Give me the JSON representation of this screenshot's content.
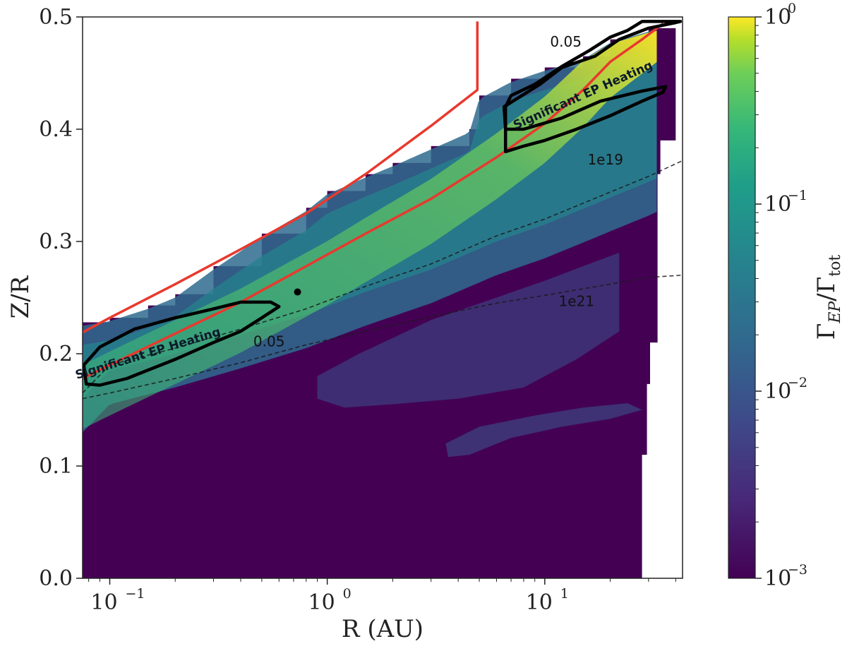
{
  "chart_data": {
    "type": "heatmap",
    "title": "",
    "xlabel": "R (AU)",
    "ylabel": "Z/R",
    "x_scale": "log",
    "xlim": [
      0.075,
      43
    ],
    "ylim": [
      0.0,
      0.5
    ],
    "x_ticks": [
      {
        "value": 0.1,
        "label": "10",
        "exp": "−1"
      },
      {
        "value": 1,
        "label": "10",
        "exp": "0"
      },
      {
        "value": 10,
        "label": "10",
        "exp": "1"
      }
    ],
    "y_ticks": [
      {
        "value": 0.0,
        "label": "0.0"
      },
      {
        "value": 0.1,
        "label": "0.1"
      },
      {
        "value": 0.2,
        "label": "0.2"
      },
      {
        "value": 0.3,
        "label": "0.3"
      },
      {
        "value": 0.4,
        "label": "0.4"
      },
      {
        "value": 0.5,
        "label": "0.5"
      }
    ],
    "colorbar": {
      "label": "Γ_EP/Γ_tot",
      "colormap": "viridis",
      "scale": "log",
      "range": [
        0.001,
        1
      ],
      "ticks": [
        {
          "value": 1,
          "label": "10",
          "exp": "0"
        },
        {
          "value": 0.1,
          "label": "10",
          "exp": "−1"
        },
        {
          "value": 0.01,
          "label": "10",
          "exp": "−2"
        },
        {
          "value": 0.001,
          "label": "10",
          "exp": "−3"
        }
      ]
    },
    "upper_boundary": [
      [
        0.075,
        0.228
      ],
      [
        0.1,
        0.232
      ],
      [
        0.15,
        0.243
      ],
      [
        0.2,
        0.253
      ],
      [
        0.3,
        0.278
      ],
      [
        0.5,
        0.307
      ],
      [
        0.8,
        0.33
      ],
      [
        1.0,
        0.345
      ],
      [
        1.5,
        0.36
      ],
      [
        2.0,
        0.37
      ],
      [
        3.0,
        0.385
      ],
      [
        4.5,
        0.4
      ],
      [
        5.0,
        0.43
      ],
      [
        7.0,
        0.445
      ],
      [
        10.0,
        0.455
      ],
      [
        15.0,
        0.465
      ],
      [
        20.0,
        0.48
      ],
      [
        30.0,
        0.49
      ],
      [
        40.0,
        0.495
      ]
    ],
    "right_boundary": [
      [
        40.0,
        0.495
      ],
      [
        40.0,
        0.39
      ],
      [
        34.0,
        0.39
      ],
      [
        34.0,
        0.36
      ],
      [
        33.0,
        0.36
      ],
      [
        33.0,
        0.21
      ],
      [
        30.5,
        0.21
      ],
      [
        30.5,
        0.173
      ],
      [
        29.5,
        0.173
      ],
      [
        29.5,
        0.11
      ],
      [
        28.0,
        0.11
      ],
      [
        28.0,
        0.0
      ]
    ],
    "features": [
      {
        "name": "green ridge along red curve",
        "x": [
          0.3,
          0.7,
          1.5,
          3,
          6,
          12,
          25,
          40
        ],
        "z": [
          0.255,
          0.275,
          0.3,
          0.33,
          0.37,
          0.41,
          0.46,
          0.49
        ],
        "level": 0.1
      },
      {
        "name": "teal upper band",
        "level": 0.02
      },
      {
        "name": "faint mid-disk feature",
        "x_range": [
          0.9,
          22
        ],
        "z_range": [
          0.15,
          0.29
        ],
        "level": 0.005
      },
      {
        "name": "faint lower feature",
        "x_range": [
          3.5,
          28
        ],
        "z_range": [
          0.11,
          0.16
        ],
        "level": 0.004
      }
    ],
    "red_curves": [
      {
        "x": [
          0.075,
          0.1,
          0.2,
          0.4,
          0.8,
          1.5,
          3,
          4.9,
          4.9
        ],
        "y": [
          0.219,
          0.232,
          0.262,
          0.293,
          0.325,
          0.36,
          0.403,
          0.435,
          0.496
        ]
      },
      {
        "x": [
          0.075,
          0.1,
          0.2,
          0.4,
          0.8,
          1.5,
          3,
          6,
          10,
          15,
          20,
          28,
          35
        ],
        "y": [
          0.178,
          0.19,
          0.218,
          0.246,
          0.278,
          0.307,
          0.338,
          0.375,
          0.405,
          0.435,
          0.46,
          0.48,
          0.494
        ]
      }
    ],
    "dashed_contours": [
      {
        "label": "1e19",
        "x": [
          0.075,
          0.1,
          0.2,
          0.4,
          0.8,
          1.5,
          3,
          6,
          10,
          20,
          30,
          43
        ],
        "y": [
          0.165,
          0.19,
          0.205,
          0.222,
          0.24,
          0.26,
          0.28,
          0.305,
          0.32,
          0.344,
          0.358,
          0.372
        ]
      },
      {
        "label": "1e21",
        "x": [
          0.075,
          0.1,
          0.2,
          0.4,
          0.8,
          1.5,
          3,
          6,
          10,
          20,
          30,
          43
        ],
        "y": [
          0.16,
          0.165,
          0.178,
          0.192,
          0.208,
          0.22,
          0.233,
          0.245,
          0.252,
          0.262,
          0.268,
          0.27
        ]
      }
    ],
    "solid_contours": [
      {
        "label": "0.05",
        "points": [
          [
            0.078,
            0.173
          ],
          [
            0.09,
            0.172
          ],
          [
            0.12,
            0.178
          ],
          [
            0.2,
            0.195
          ],
          [
            0.3,
            0.21
          ],
          [
            0.4,
            0.22
          ],
          [
            0.5,
            0.232
          ],
          [
            0.6,
            0.242
          ],
          [
            0.55,
            0.246
          ],
          [
            0.4,
            0.246
          ],
          [
            0.3,
            0.24
          ],
          [
            0.2,
            0.232
          ],
          [
            0.13,
            0.222
          ],
          [
            0.09,
            0.206
          ],
          [
            0.076,
            0.19
          ],
          [
            0.078,
            0.173
          ]
        ]
      },
      {
        "label": "0.05",
        "points": [
          [
            6.6,
            0.38
          ],
          [
            8.0,
            0.385
          ],
          [
            10,
            0.39
          ],
          [
            14,
            0.4
          ],
          [
            20,
            0.412
          ],
          [
            28,
            0.425
          ],
          [
            35,
            0.433
          ],
          [
            36,
            0.438
          ],
          [
            28,
            0.434
          ],
          [
            18,
            0.425
          ],
          [
            12,
            0.41
          ],
          [
            8,
            0.4
          ],
          [
            6.6,
            0.4
          ],
          [
            6.5,
            0.42
          ],
          [
            9.5,
            0.44
          ],
          [
            12,
            0.455
          ],
          [
            17,
            0.465
          ],
          [
            22,
            0.48
          ],
          [
            30,
            0.49
          ],
          [
            40,
            0.495
          ],
          [
            42,
            0.496
          ],
          [
            35,
            0.496
          ],
          [
            28,
            0.496
          ],
          [
            24,
            0.488
          ],
          [
            20,
            0.482
          ],
          [
            16,
            0.47
          ],
          [
            12,
            0.456
          ],
          [
            9,
            0.44
          ],
          [
            7,
            0.43
          ],
          [
            6.6,
            0.42
          ],
          [
            6.6,
            0.38
          ]
        ]
      }
    ],
    "annotations": [
      {
        "text": "0.05",
        "x": 12.5,
        "y": 0.477
      },
      {
        "text": "0.05",
        "x": 0.54,
        "y": 0.21
      },
      {
        "text": "1e19",
        "x": 19,
        "y": 0.372
      },
      {
        "text": "1e21",
        "x": 14,
        "y": 0.246
      },
      {
        "text": "Significant EP Heating",
        "x": 0.15,
        "y": 0.2,
        "angle": -17
      },
      {
        "text": "Significant EP Heating",
        "x": 15,
        "y": 0.43,
        "angle": -24
      }
    ],
    "marker": {
      "shape": "circle",
      "x": 0.73,
      "y": 0.255
    }
  }
}
